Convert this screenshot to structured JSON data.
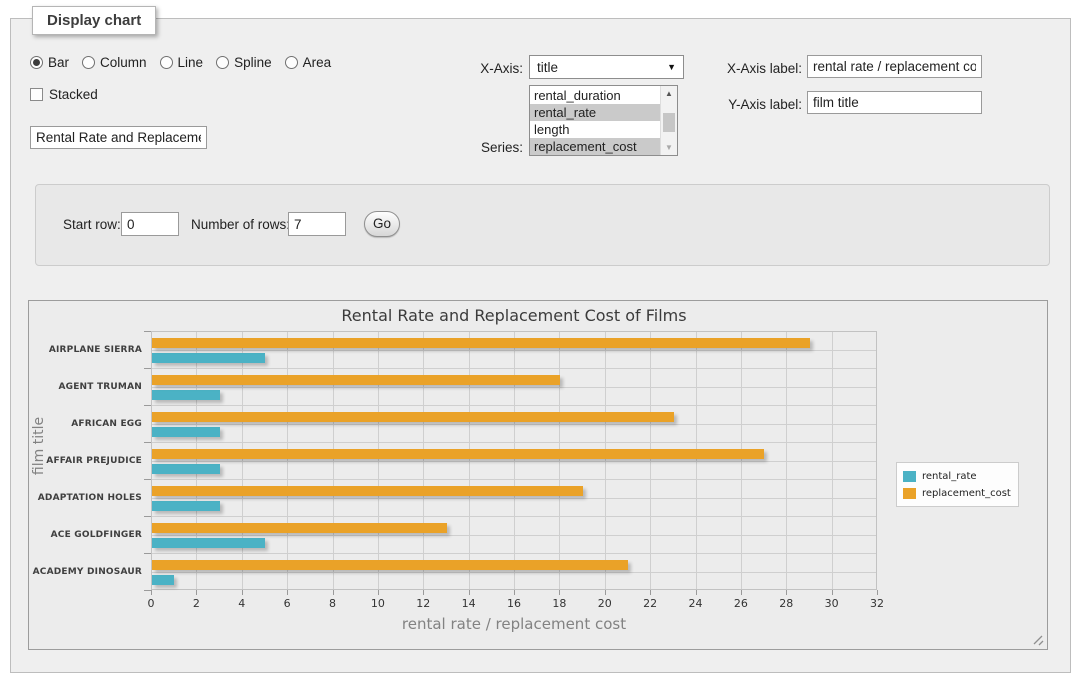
{
  "fieldset": {
    "legend": "Display chart"
  },
  "chart_type": {
    "options": [
      {
        "label": "Bar",
        "selected": true
      },
      {
        "label": "Column",
        "selected": false
      },
      {
        "label": "Line",
        "selected": false
      },
      {
        "label": "Spline",
        "selected": false
      },
      {
        "label": "Area",
        "selected": false
      }
    ]
  },
  "stacked": {
    "label": "Stacked",
    "checked": false
  },
  "chart_title_input": {
    "value": "Rental Rate and Replacement Cost of Films"
  },
  "x_axis_select": {
    "label": "X-Axis:",
    "value": "title"
  },
  "series_list": {
    "label": "Series:",
    "options": [
      {
        "label": "rental_duration",
        "selected": false
      },
      {
        "label": "rental_rate",
        "selected": true
      },
      {
        "label": "length",
        "selected": false
      },
      {
        "label": "replacement_cost",
        "selected": true
      }
    ]
  },
  "x_axis_label_input": {
    "label": "X-Axis label:",
    "value": "rental rate / replacement cost"
  },
  "y_axis_label_input": {
    "label": "Y-Axis label:",
    "value": "film title"
  },
  "row_form": {
    "start_row_label": "Start row:",
    "start_row_value": "0",
    "rows_label": "Number of rows:",
    "rows_value": "7",
    "go_label": "Go"
  },
  "chart_data": {
    "type": "bar",
    "orientation": "horizontal",
    "title": "Rental Rate and Replacement Cost of Films",
    "xlabel": "rental rate / replacement cost",
    "ylabel": "film title",
    "categories": [
      "AIRPLANE SIERRA",
      "AGENT TRUMAN",
      "AFRICAN EGG",
      "AFFAIR PREJUDICE",
      "ADAPTATION HOLES",
      "ACE GOLDFINGER",
      "ACADEMY DINOSAUR"
    ],
    "series": [
      {
        "name": "rental_rate",
        "color": "#4bb2c5",
        "values": [
          4.99,
          2.99,
          2.99,
          2.99,
          2.99,
          4.99,
          0.99
        ]
      },
      {
        "name": "replacement_cost",
        "color": "#eaa228",
        "values": [
          28.99,
          17.99,
          22.99,
          26.99,
          18.99,
          12.99,
          20.99
        ]
      }
    ],
    "xlim": [
      0,
      32
    ],
    "xticks": [
      0,
      2,
      4,
      6,
      8,
      10,
      12,
      14,
      16,
      18,
      20,
      22,
      24,
      26,
      28,
      30,
      32
    ],
    "legend_position": "right",
    "grid": true
  }
}
